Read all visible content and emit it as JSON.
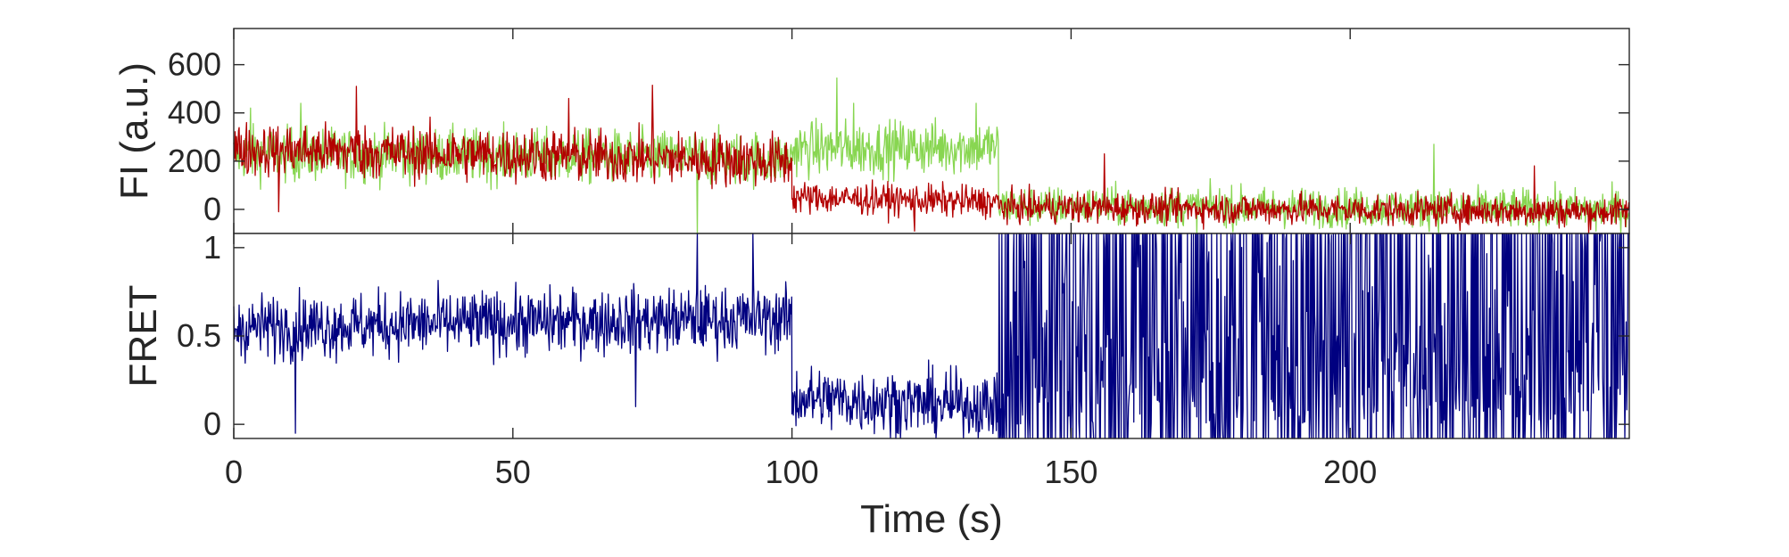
{
  "chart_data": [
    {
      "type": "line",
      "panel": "top",
      "ylabel": "FI (a.u.)",
      "xlim": [
        0,
        250
      ],
      "ylim": [
        -100,
        750
      ],
      "yticks": [
        0,
        200,
        400,
        600
      ],
      "yticklabels": [
        "0",
        "200",
        "400",
        "600"
      ],
      "colors": [
        "#88d651",
        "#b30000"
      ],
      "series": [
        {
          "color": "#88d651",
          "segments": [
            {
              "x": [
                0,
                100
              ],
              "mean": [
                230,
                210
              ],
              "noise": 55,
              "spikes": [
                [
                  3,
                  420
                ],
                [
                  12,
                  440
                ],
                [
                  22,
                  420
                ],
                [
                  60,
                  400
                ],
                [
                  83,
                  -100
                ]
              ]
            },
            {
              "x": [
                100,
                137
              ],
              "mean": [
                250,
                260
              ],
              "noise": 55,
              "spikes": [
                [
                  108,
                  545
                ],
                [
                  111,
                  440
                ],
                [
                  133,
                  440
                ]
              ]
            },
            {
              "x": [
                137,
                250
              ],
              "mean": [
                15,
                0
              ],
              "noise": 40,
              "spikes": [
                [
                  215,
                  270
                ],
                [
                  244,
                  -90
                ]
              ]
            }
          ]
        },
        {
          "color": "#b30000",
          "segments": [
            {
              "x": [
                0,
                100
              ],
              "mean": [
                250,
                200
              ],
              "noise": 55,
              "spikes": [
                [
                  8,
                  -10
                ],
                [
                  22,
                  510
                ],
                [
                  60,
                  460
                ],
                [
                  75,
                  515
                ]
              ]
            },
            {
              "x": [
                100,
                137
              ],
              "mean": [
                50,
                30
              ],
              "noise": 32,
              "spikes": [
                [
                  122,
                  -90
                ]
              ]
            },
            {
              "x": [
                137,
                250
              ],
              "mean": [
                10,
                -10
              ],
              "noise": 32,
              "spikes": [
                [
                  156,
                  230
                ],
                [
                  233,
                  180
                ]
              ]
            }
          ]
        }
      ]
    },
    {
      "type": "line",
      "panel": "bottom",
      "ylabel": "FRET",
      "xlabel": "Time (s)",
      "xlim": [
        0,
        250
      ],
      "ylim": [
        -0.08,
        1.08
      ],
      "xticks": [
        0,
        50,
        100,
        150,
        200
      ],
      "xticklabels": [
        "0",
        "50",
        "100",
        "150",
        "200"
      ],
      "yticks": [
        0,
        0.5,
        1
      ],
      "yticklabels": [
        "0",
        "0.5",
        "1"
      ],
      "colors": [
        "#000080"
      ],
      "series": [
        {
          "color": "#000080",
          "segments": [
            {
              "x": [
                0,
                100
              ],
              "mean": [
                0.55,
                0.6
              ],
              "noise": 0.09,
              "spikes": [
                [
                  11,
                  -0.05
                ],
                [
                  72,
                  0.1
                ],
                [
                  83,
                  1.08
                ],
                [
                  93,
                  1.08
                ]
              ]
            },
            {
              "x": [
                100,
                137
              ],
              "mean": [
                0.15,
                0.1
              ],
              "noise": 0.09,
              "spikes": []
            },
            {
              "x": [
                137,
                250
              ],
              "mean": [
                0.4,
                0.4
              ],
              "noise": 0.45,
              "spikes": []
            }
          ]
        }
      ]
    }
  ]
}
